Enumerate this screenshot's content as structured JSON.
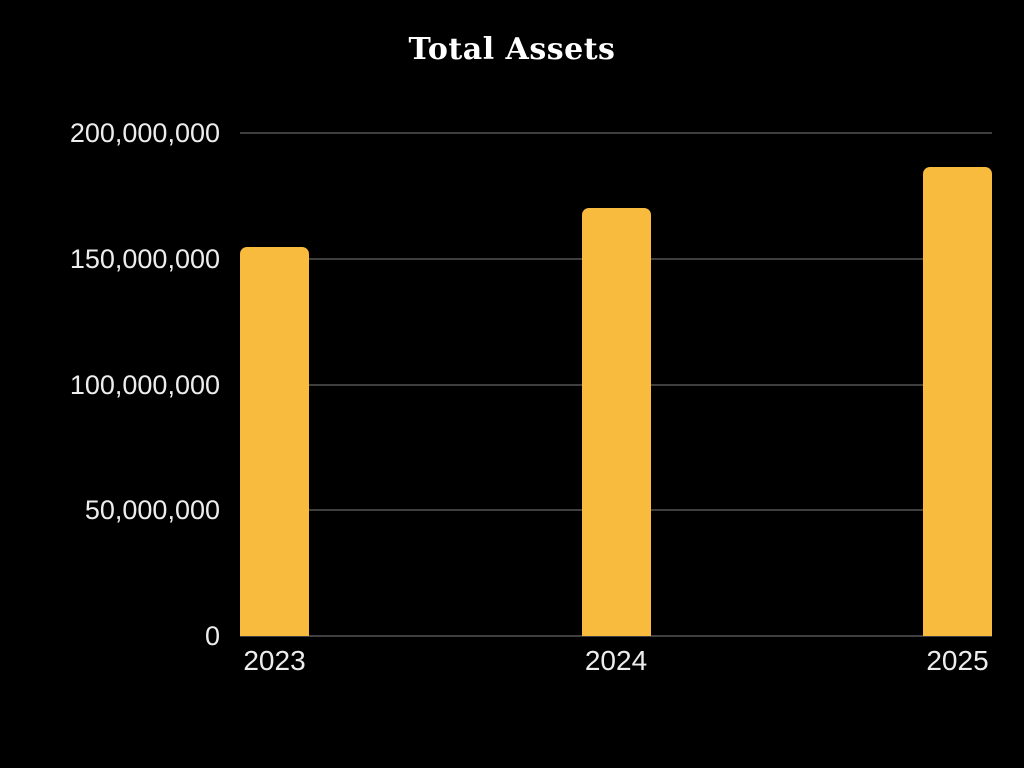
{
  "chart_data": {
    "type": "bar",
    "title": "Total Assets",
    "categories": [
      "2023",
      "2024",
      "2025"
    ],
    "values": [
      154500000,
      170000000,
      186500000
    ],
    "xlabel": "",
    "ylabel": "",
    "ylim": [
      0,
      200000000
    ],
    "yticks": [
      0,
      50000000,
      100000000,
      150000000,
      200000000
    ],
    "ytick_labels": [
      "0",
      "50,000,000",
      "100,000,000",
      "150,000,000",
      "200,000,000"
    ],
    "grid": true,
    "legend": false,
    "colors": {
      "bar": "#F9BB3E",
      "background": "#000000",
      "gridline": "#3F3F3F",
      "axis_label": "#EDEDED",
      "title": "#FFFFFF"
    }
  }
}
